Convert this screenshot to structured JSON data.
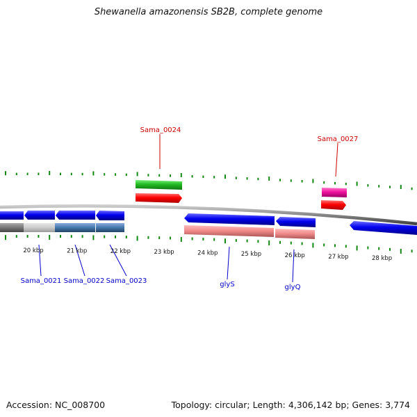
{
  "title": "Shewanella amazonensis SB2B, complete genome",
  "footer": {
    "accession": "Accession: NC_008700",
    "summary": "Topology: circular; Length: 4,306,142 bp; Genes: 3,774"
  },
  "scale_labels": [
    "20 kbp",
    "21 kbp",
    "22 kbp",
    "23 kbp",
    "24 kbp",
    "25 kbp",
    "26 kbp",
    "27 kbp",
    "28 kbp"
  ],
  "gene_labels": {
    "sama_0024": "Sama_0024",
    "sama_0027": "Sama_0027",
    "sama_0021": "Sama_0021",
    "sama_0022": "Sama_0022",
    "sama_0023": "Sama_0023",
    "glys": "glyS",
    "glyq": "glyQ"
  },
  "colors": {
    "forward_gene": "#0000ee",
    "reverse_gene_red": "#ff0000",
    "green_feature": "#22bb22",
    "magenta_feature": "#ee1199",
    "label_red": "#cc0000",
    "label_blue": "#0000cc",
    "tick_green": "#118811",
    "backbone": "#888888",
    "steel_blue": "#4477aa",
    "salmon": "#ee8888"
  }
}
